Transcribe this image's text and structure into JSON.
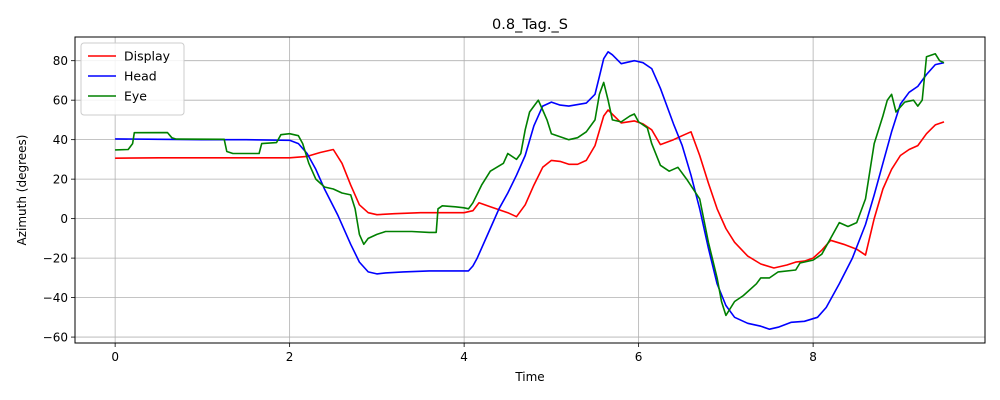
{
  "chart_data": {
    "type": "line",
    "title": "0.8_Tag._S",
    "xlabel": "Time",
    "ylabel": "Azimuth (degrees)",
    "xlim": [
      -0.46,
      9.97
    ],
    "ylim": [
      -63,
      92
    ],
    "xticks": [
      0,
      2,
      4,
      6,
      8
    ],
    "yticks": [
      -60,
      -40,
      -20,
      0,
      20,
      40,
      60,
      80
    ],
    "grid": true,
    "legend": "top-left",
    "series": [
      {
        "name": "Display",
        "color": "#ff0000",
        "points": [
          [
            0,
            30.6
          ],
          [
            0.5,
            30.8
          ],
          [
            1,
            30.8
          ],
          [
            1.5,
            30.8
          ],
          [
            2,
            30.8
          ],
          [
            2.2,
            31.5
          ],
          [
            2.35,
            33.5
          ],
          [
            2.5,
            35
          ],
          [
            2.6,
            28
          ],
          [
            2.7,
            17
          ],
          [
            2.8,
            7
          ],
          [
            2.9,
            3
          ],
          [
            3.0,
            2
          ],
          [
            3.2,
            2.5
          ],
          [
            3.5,
            3
          ],
          [
            3.8,
            3
          ],
          [
            4.0,
            3
          ],
          [
            4.1,
            4
          ],
          [
            4.17,
            8
          ],
          [
            4.3,
            6
          ],
          [
            4.5,
            3
          ],
          [
            4.6,
            1
          ],
          [
            4.7,
            7
          ],
          [
            4.8,
            17
          ],
          [
            4.9,
            26
          ],
          [
            5.0,
            29.5
          ],
          [
            5.1,
            29
          ],
          [
            5.2,
            27.5
          ],
          [
            5.3,
            27.5
          ],
          [
            5.4,
            29.5
          ],
          [
            5.5,
            37
          ],
          [
            5.6,
            52
          ],
          [
            5.65,
            55
          ],
          [
            5.8,
            48.5
          ],
          [
            5.95,
            49.5
          ],
          [
            6.05,
            48
          ],
          [
            6.15,
            45
          ],
          [
            6.25,
            37.5
          ],
          [
            6.4,
            40
          ],
          [
            6.5,
            42
          ],
          [
            6.6,
            44
          ],
          [
            6.7,
            32
          ],
          [
            6.8,
            18
          ],
          [
            6.9,
            5
          ],
          [
            7.0,
            -5
          ],
          [
            7.1,
            -12
          ],
          [
            7.25,
            -19
          ],
          [
            7.4,
            -23
          ],
          [
            7.55,
            -25
          ],
          [
            7.7,
            -23.5
          ],
          [
            7.8,
            -22
          ],
          [
            7.9,
            -21.5
          ],
          [
            8.0,
            -20
          ],
          [
            8.1,
            -16
          ],
          [
            8.2,
            -11
          ],
          [
            8.35,
            -13
          ],
          [
            8.5,
            -15.5
          ],
          [
            8.6,
            -18.5
          ],
          [
            8.7,
            0
          ],
          [
            8.8,
            15
          ],
          [
            8.9,
            25
          ],
          [
            9.0,
            32
          ],
          [
            9.1,
            35
          ],
          [
            9.2,
            37
          ],
          [
            9.3,
            43
          ],
          [
            9.4,
            47.5
          ],
          [
            9.5,
            49
          ]
        ]
      },
      {
        "name": "Head",
        "color": "#0000ff",
        "points": [
          [
            0,
            40.4
          ],
          [
            0.5,
            40.2
          ],
          [
            1,
            40
          ],
          [
            1.5,
            40
          ],
          [
            2,
            39.7
          ],
          [
            2.1,
            38
          ],
          [
            2.2,
            33
          ],
          [
            2.3,
            25
          ],
          [
            2.4,
            15
          ],
          [
            2.55,
            2
          ],
          [
            2.7,
            -13
          ],
          [
            2.8,
            -22
          ],
          [
            2.9,
            -27
          ],
          [
            3.0,
            -28
          ],
          [
            3.1,
            -27.5
          ],
          [
            3.3,
            -27
          ],
          [
            3.6,
            -26.5
          ],
          [
            3.9,
            -26.5
          ],
          [
            4.05,
            -26.5
          ],
          [
            4.1,
            -24
          ],
          [
            4.15,
            -20
          ],
          [
            4.3,
            -5
          ],
          [
            4.4,
            5
          ],
          [
            4.5,
            13
          ],
          [
            4.6,
            22
          ],
          [
            4.7,
            32
          ],
          [
            4.8,
            47
          ],
          [
            4.9,
            57
          ],
          [
            5.0,
            59
          ],
          [
            5.1,
            57.5
          ],
          [
            5.2,
            57
          ],
          [
            5.4,
            58.5
          ],
          [
            5.5,
            63
          ],
          [
            5.55,
            72
          ],
          [
            5.6,
            81
          ],
          [
            5.65,
            84.5
          ],
          [
            5.7,
            83
          ],
          [
            5.8,
            78.5
          ],
          [
            5.95,
            80
          ],
          [
            6.05,
            79
          ],
          [
            6.15,
            76
          ],
          [
            6.25,
            66
          ],
          [
            6.4,
            48
          ],
          [
            6.5,
            37
          ],
          [
            6.6,
            22
          ],
          [
            6.7,
            5
          ],
          [
            6.8,
            -15
          ],
          [
            6.9,
            -33
          ],
          [
            7.0,
            -44
          ],
          [
            7.1,
            -50
          ],
          [
            7.25,
            -53
          ],
          [
            7.4,
            -54.5
          ],
          [
            7.5,
            -56
          ],
          [
            7.6,
            -55
          ],
          [
            7.75,
            -52.5
          ],
          [
            7.9,
            -52
          ],
          [
            8.05,
            -50
          ],
          [
            8.15,
            -45
          ],
          [
            8.3,
            -33
          ],
          [
            8.45,
            -20
          ],
          [
            8.6,
            -3
          ],
          [
            8.7,
            12
          ],
          [
            8.8,
            28
          ],
          [
            8.9,
            44
          ],
          [
            9.0,
            58
          ],
          [
            9.1,
            64
          ],
          [
            9.2,
            67
          ],
          [
            9.3,
            73
          ],
          [
            9.4,
            78
          ],
          [
            9.5,
            79
          ]
        ]
      },
      {
        "name": "Eye",
        "color": "#008000",
        "points": [
          [
            0,
            34.8
          ],
          [
            0.15,
            35
          ],
          [
            0.2,
            38
          ],
          [
            0.22,
            43.5
          ],
          [
            0.6,
            43.6
          ],
          [
            0.65,
            41
          ],
          [
            0.7,
            40.3
          ],
          [
            1.25,
            40.2
          ],
          [
            1.28,
            34
          ],
          [
            1.35,
            33
          ],
          [
            1.65,
            33
          ],
          [
            1.68,
            38
          ],
          [
            1.85,
            38.5
          ],
          [
            1.9,
            42.5
          ],
          [
            2.0,
            43
          ],
          [
            2.1,
            42
          ],
          [
            2.15,
            38
          ],
          [
            2.22,
            28
          ],
          [
            2.3,
            20
          ],
          [
            2.4,
            16
          ],
          [
            2.5,
            15
          ],
          [
            2.6,
            13
          ],
          [
            2.7,
            12
          ],
          [
            2.75,
            5
          ],
          [
            2.8,
            -8
          ],
          [
            2.85,
            -13
          ],
          [
            2.9,
            -10
          ],
          [
            3.0,
            -8
          ],
          [
            3.1,
            -6.5
          ],
          [
            3.4,
            -6.5
          ],
          [
            3.6,
            -7
          ],
          [
            3.68,
            -7
          ],
          [
            3.7,
            5
          ],
          [
            3.75,
            6.5
          ],
          [
            3.9,
            6
          ],
          [
            4.0,
            5.5
          ],
          [
            4.05,
            5
          ],
          [
            4.1,
            8
          ],
          [
            4.2,
            17
          ],
          [
            4.3,
            24
          ],
          [
            4.45,
            28
          ],
          [
            4.5,
            33
          ],
          [
            4.6,
            30
          ],
          [
            4.65,
            33
          ],
          [
            4.7,
            45
          ],
          [
            4.75,
            54
          ],
          [
            4.8,
            57
          ],
          [
            4.85,
            60
          ],
          [
            4.9,
            55
          ],
          [
            4.95,
            50
          ],
          [
            5.0,
            43
          ],
          [
            5.2,
            40
          ],
          [
            5.3,
            41
          ],
          [
            5.4,
            44
          ],
          [
            5.5,
            50
          ],
          [
            5.55,
            63
          ],
          [
            5.6,
            69
          ],
          [
            5.65,
            60
          ],
          [
            5.7,
            50
          ],
          [
            5.8,
            49
          ],
          [
            5.9,
            52
          ],
          [
            5.95,
            53
          ],
          [
            6.0,
            49
          ],
          [
            6.1,
            46
          ],
          [
            6.15,
            38
          ],
          [
            6.25,
            27
          ],
          [
            6.35,
            24
          ],
          [
            6.45,
            26
          ],
          [
            6.55,
            20
          ],
          [
            6.7,
            10
          ],
          [
            6.8,
            -12
          ],
          [
            6.9,
            -30
          ],
          [
            6.95,
            -42
          ],
          [
            7.0,
            -49
          ],
          [
            7.1,
            -42
          ],
          [
            7.2,
            -39
          ],
          [
            7.35,
            -33
          ],
          [
            7.4,
            -30
          ],
          [
            7.5,
            -30
          ],
          [
            7.6,
            -27
          ],
          [
            7.8,
            -26
          ],
          [
            7.85,
            -22.5
          ],
          [
            8.0,
            -21
          ],
          [
            8.1,
            -18
          ],
          [
            8.2,
            -10
          ],
          [
            8.3,
            -2
          ],
          [
            8.4,
            -4
          ],
          [
            8.5,
            -2
          ],
          [
            8.6,
            10
          ],
          [
            8.7,
            38
          ],
          [
            8.8,
            52
          ],
          [
            8.85,
            60
          ],
          [
            8.9,
            63
          ],
          [
            8.95,
            54
          ],
          [
            9.05,
            59
          ],
          [
            9.15,
            60
          ],
          [
            9.2,
            57
          ],
          [
            9.25,
            60
          ],
          [
            9.3,
            82
          ],
          [
            9.4,
            83.5
          ],
          [
            9.45,
            80
          ],
          [
            9.5,
            79
          ]
        ]
      }
    ]
  }
}
